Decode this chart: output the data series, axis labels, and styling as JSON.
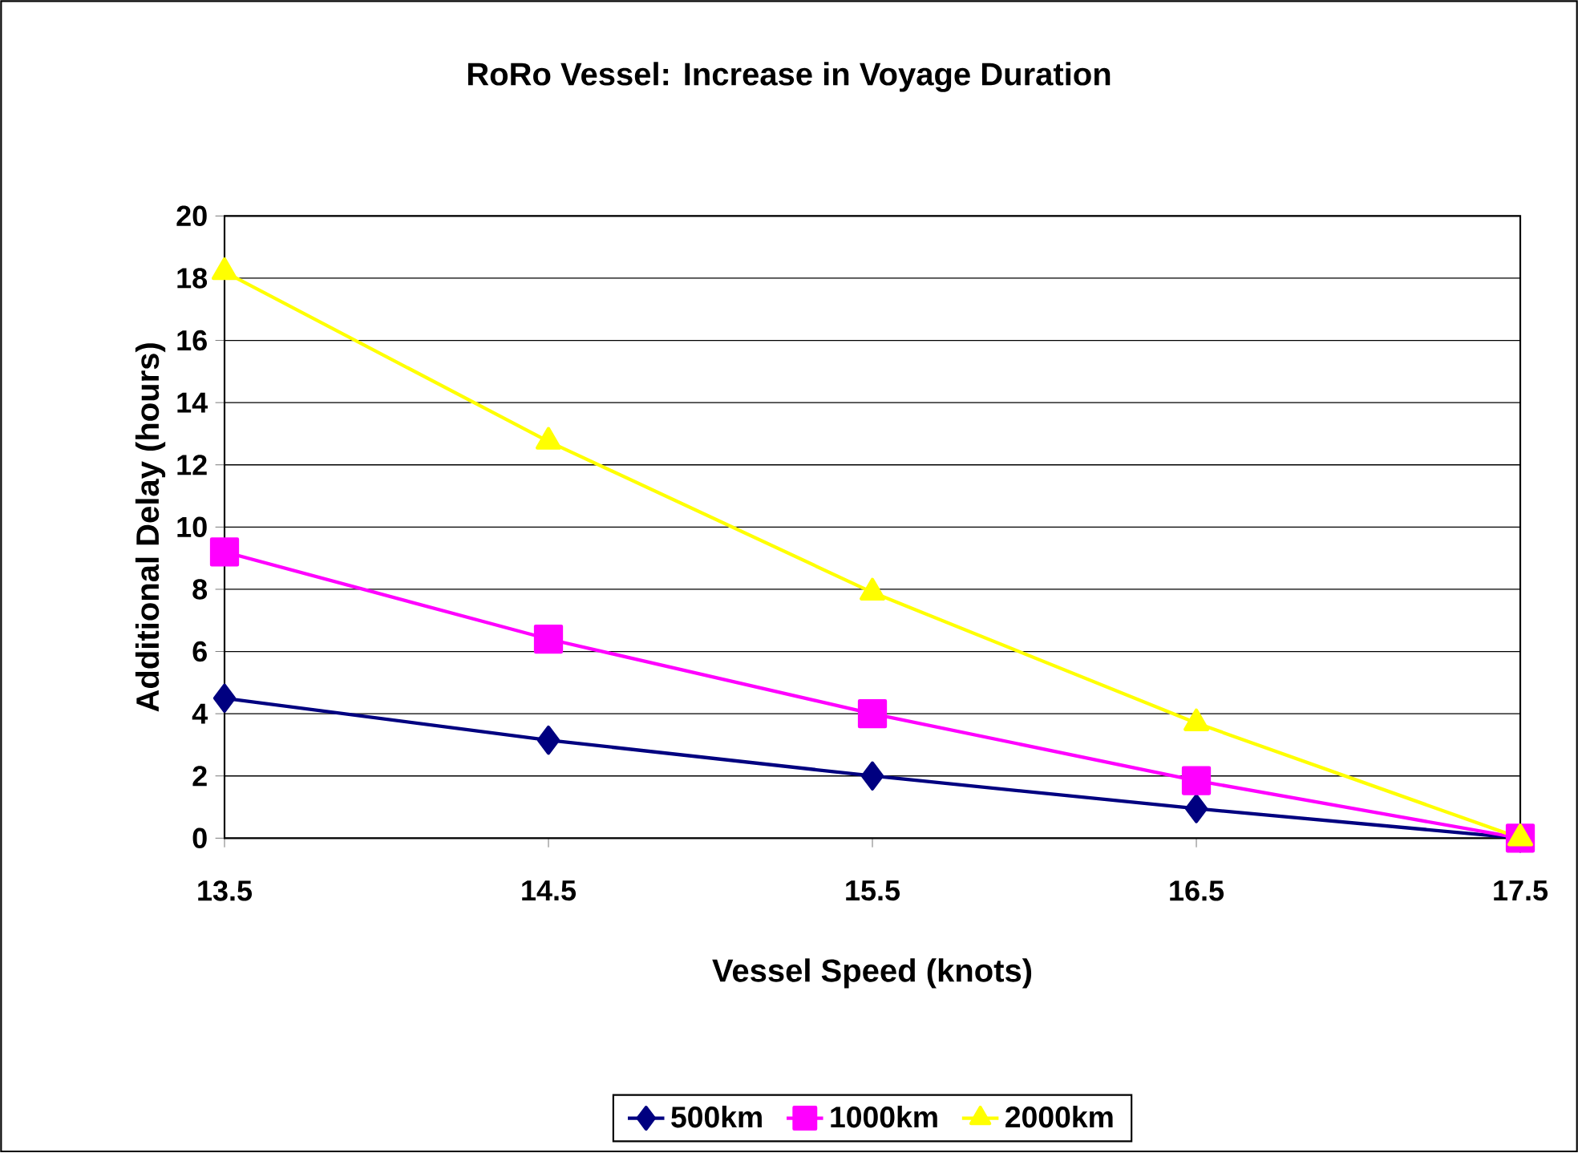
{
  "chart_data": {
    "type": "line",
    "title": "RoRo Vessel: Increase in Voyage Duration",
    "xlabel": "Vessel Speed (knots)",
    "ylabel": "Additional Delay (hours)",
    "x": [
      13.5,
      14.5,
      15.5,
      16.5,
      17.5
    ],
    "series": [
      {
        "name": "500km",
        "color": "#000080",
        "marker": "diamond",
        "values": [
          4.5,
          3.15,
          2.0,
          0.95,
          0
        ]
      },
      {
        "name": "1000km",
        "color": "#ff00ff",
        "marker": "square",
        "values": [
          9.2,
          6.4,
          4.0,
          1.85,
          0
        ]
      },
      {
        "name": "2000km",
        "color": "#ffff00",
        "marker": "triangle",
        "values": [
          18.2,
          12.75,
          7.9,
          3.7,
          0
        ]
      }
    ],
    "xlim": [
      13.5,
      17.5
    ],
    "xticks": [
      13.5,
      14.5,
      15.5,
      16.5,
      17.5
    ],
    "ylim": [
      0,
      20
    ],
    "yticks": [
      0,
      2,
      4,
      6,
      8,
      10,
      12,
      14,
      16,
      18,
      20
    ],
    "grid": "y",
    "legend": "bottom",
    "line_style": "solid"
  }
}
